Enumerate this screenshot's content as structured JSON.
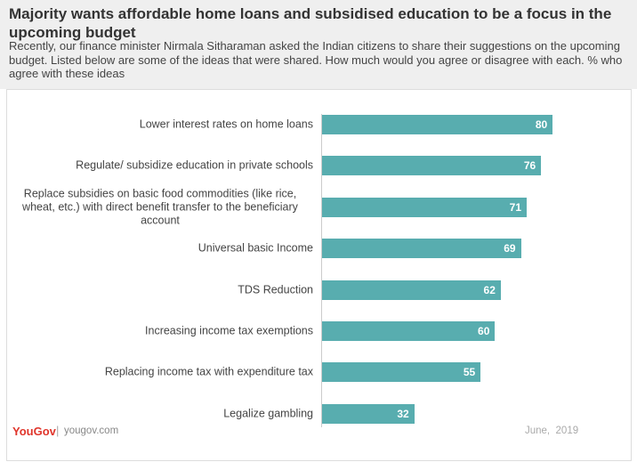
{
  "chart_data": {
    "type": "bar",
    "title": "Majority wants affordable home loans and subsidised education to be a focus in the upcoming budget",
    "subtitle": "Recently, our finance minister Nirmala Sitharaman asked the Indian citizens to share their suggestions on the upcoming budget. Listed below are some of the ideas that were shared. How much would you agree or disagree with each. % who agree with these ideas",
    "categories": [
      "Lower interest rates on home loans",
      "Regulate/ subsidize education in private schools",
      "Replace subsidies on basic food commodities (like rice, wheat, etc.) with direct benefit transfer to the beneficiary account",
      "Universal basic Income",
      "TDS Reduction",
      "Increasing income tax exemptions",
      "Replacing income tax with expenditure tax",
      "Legalize gambling"
    ],
    "values": [
      80,
      76,
      71,
      69,
      62,
      60,
      55,
      32
    ],
    "color": "#58adaf",
    "brand": "YouGov",
    "source": "yougov.com",
    "date": "June,  2019"
  }
}
